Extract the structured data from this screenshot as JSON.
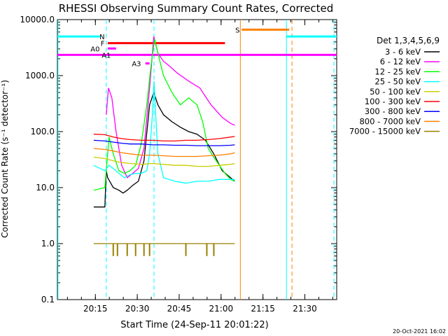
{
  "chart_data": {
    "type": "line",
    "title": "RHESSI Observing Summary Count Rates, Corrected",
    "xlabel": "Start Time (24-Sep-11 20:01:22)",
    "ylabel": "Corrected Count Rate (s⁻¹ detector⁻¹)",
    "yscale": "log",
    "ylim": [
      0.1,
      10000
    ],
    "xlim_min": [
      0,
      100
    ],
    "x_ticks": [
      {
        "label": "20:15",
        "t": 13.6
      },
      {
        "label": "20:30",
        "t": 28.6
      },
      {
        "label": "20:45",
        "t": 43.6
      },
      {
        "label": "21:00",
        "t": 58.6
      },
      {
        "label": "21:15",
        "t": 73.6
      },
      {
        "label": "21:30",
        "t": 88.6
      }
    ],
    "y_ticks": [
      {
        "label": "10000.0",
        "v": 10000
      },
      {
        "label": "1000.0",
        "v": 1000
      },
      {
        "label": "100.0",
        "v": 100
      },
      {
        "label": "10.0",
        "v": 10
      },
      {
        "label": "1.0",
        "v": 1
      },
      {
        "label": "0.1",
        "v": 0.1
      }
    ],
    "legend_title": "Det 1,3,4,5,6,9",
    "series": [
      {
        "name": "3 - 6 keV",
        "color": "#000000",
        "x": [
          13,
          17,
          17.5,
          18,
          20,
          22,
          23.5,
          25,
          27,
          29,
          31,
          33,
          34.5,
          36,
          38,
          41,
          44,
          47,
          50,
          53,
          56,
          59,
          62,
          63.5
        ],
        "y": [
          4.5,
          4.5,
          20,
          15,
          10,
          9,
          8,
          9,
          11,
          13,
          30,
          300,
          500,
          300,
          200,
          150,
          120,
          100,
          90,
          70,
          40,
          20,
          15,
          13
        ]
      },
      {
        "name": "6 - 12 keV",
        "color": "#ff00ff",
        "x": [
          17.5,
          18.3,
          19.5,
          21,
          23,
          25,
          27,
          29,
          31,
          33,
          34.5,
          36,
          38,
          40,
          43,
          47,
          51,
          55,
          59,
          62,
          63.5
        ],
        "y": [
          200,
          600,
          400,
          100,
          25,
          15,
          18,
          22,
          50,
          600,
          5000,
          2500,
          1800,
          1500,
          1100,
          800,
          600,
          300,
          180,
          140,
          130
        ]
      },
      {
        "name": "12 - 25 keV",
        "color": "#00ff00",
        "x": [
          13,
          17,
          18.5,
          20,
          22,
          24,
          26,
          28,
          30,
          32,
          33.5,
          34.8,
          36,
          38,
          41,
          44,
          47,
          50,
          52,
          54,
          56,
          58,
          60,
          62,
          63.5
        ],
        "y": [
          9,
          10,
          80,
          40,
          20,
          18,
          20,
          25,
          60,
          300,
          1500,
          4500,
          2500,
          1000,
          500,
          300,
          400,
          300,
          150,
          50,
          35,
          25,
          18,
          14,
          13
        ]
      },
      {
        "name": "25 - 50 keV",
        "color": "#00ffff",
        "x": [
          13,
          17,
          18.5,
          20,
          22,
          24,
          26,
          28,
          30,
          32,
          33,
          34,
          34.6,
          35.2,
          36,
          38,
          42,
          46,
          50,
          54,
          58,
          62,
          63.5
        ],
        "y": [
          25,
          20,
          25,
          22,
          18,
          15,
          17,
          18,
          18,
          20,
          40,
          200,
          800,
          200,
          40,
          15,
          13,
          12,
          13,
          13,
          14,
          14,
          14
        ]
      },
      {
        "name": "50 - 100 keV",
        "color": "#cccc00",
        "x": [
          13,
          17,
          20,
          23,
          26,
          30,
          34,
          38,
          42,
          46,
          50,
          54,
          58,
          62,
          63.5
        ],
        "y": [
          35,
          33,
          30,
          28,
          27,
          26,
          27,
          26,
          25,
          25,
          24,
          24,
          25,
          26,
          27
        ]
      },
      {
        "name": "100 - 300 keV",
        "color": "#ff0000",
        "x": [
          13,
          17,
          20,
          23,
          26,
          30,
          34,
          38,
          42,
          46,
          50,
          54,
          58,
          62,
          63.5
        ],
        "y": [
          90,
          88,
          80,
          75,
          72,
          70,
          70,
          68,
          68,
          70,
          70,
          72,
          75,
          80,
          82
        ]
      },
      {
        "name": "300 - 800 keV",
        "color": "#0000ff",
        "x": [
          13,
          17,
          20,
          23,
          26,
          30,
          34,
          38,
          42,
          46,
          50,
          54,
          58,
          62,
          63.5
        ],
        "y": [
          70,
          68,
          65,
          62,
          60,
          60,
          58,
          58,
          57,
          57,
          56,
          56,
          56,
          57,
          58
        ]
      },
      {
        "name": "800 - 7000 keV",
        "color": "#ff8000",
        "x": [
          13,
          17,
          20,
          23,
          26,
          30,
          34,
          38,
          42,
          46,
          50,
          54,
          58,
          62,
          63.5
        ],
        "y": [
          50,
          48,
          45,
          42,
          40,
          38,
          38,
          37,
          36,
          36,
          36,
          37,
          38,
          40,
          42
        ]
      },
      {
        "name": "7000 - 15000 keV",
        "color": "#998000",
        "x": [
          13,
          63.5
        ],
        "y": [
          1.0,
          1.0
        ]
      }
    ],
    "drops_7000_15000": [
      20,
      21.5,
      25,
      28,
      31,
      33,
      46,
      53.5,
      56
    ],
    "annotation_bars": [
      {
        "label": "N",
        "color": "#00ffff",
        "x0": 0,
        "x1": 15.2,
        "y": 5000,
        "label_t": 16
      },
      {
        "label": "N",
        "color": "#00ffff",
        "x0": 82,
        "x1": 100,
        "y": 5000,
        "label_t": null
      },
      {
        "label": "S",
        "color": "#ff8000",
        "x0": 66,
        "x1": 83,
        "y": 6600,
        "label_t": 64.5
      },
      {
        "label": "F",
        "color": "#ff0000",
        "x0": 18,
        "x1": 60,
        "y": 3800,
        "label_t": 16.2
      },
      {
        "label": "A0",
        "color": "#ff00ff",
        "x0": 18,
        "x1": 21,
        "y": 3050,
        "label_t": 13.5
      },
      {
        "label": "A1",
        "color": "#ff00ff",
        "x0": 0,
        "x1": 100,
        "y": 2350,
        "label_t": 17.5
      },
      {
        "label": "A3",
        "color": "#ff00ff",
        "x0": 31.5,
        "x1": 33,
        "y": 1650,
        "label_t": 28.3
      }
    ],
    "vertical_lines": [
      {
        "t": 0.2,
        "color": "#00ffff",
        "dash": false
      },
      {
        "t": 17.5,
        "color": "#00ffff",
        "dash": true
      },
      {
        "t": 34.6,
        "color": "#00ffff",
        "dash": true
      },
      {
        "t": 65.5,
        "color": "#ff8000",
        "dash": false
      },
      {
        "t": 82,
        "color": "#00ffff",
        "dash": false
      },
      {
        "t": 84,
        "color": "#ff8000",
        "dash": true
      },
      {
        "t": 99,
        "color": "#00ffff",
        "dash": true
      }
    ],
    "footer_date": "20-Oct-2021 16:02"
  }
}
